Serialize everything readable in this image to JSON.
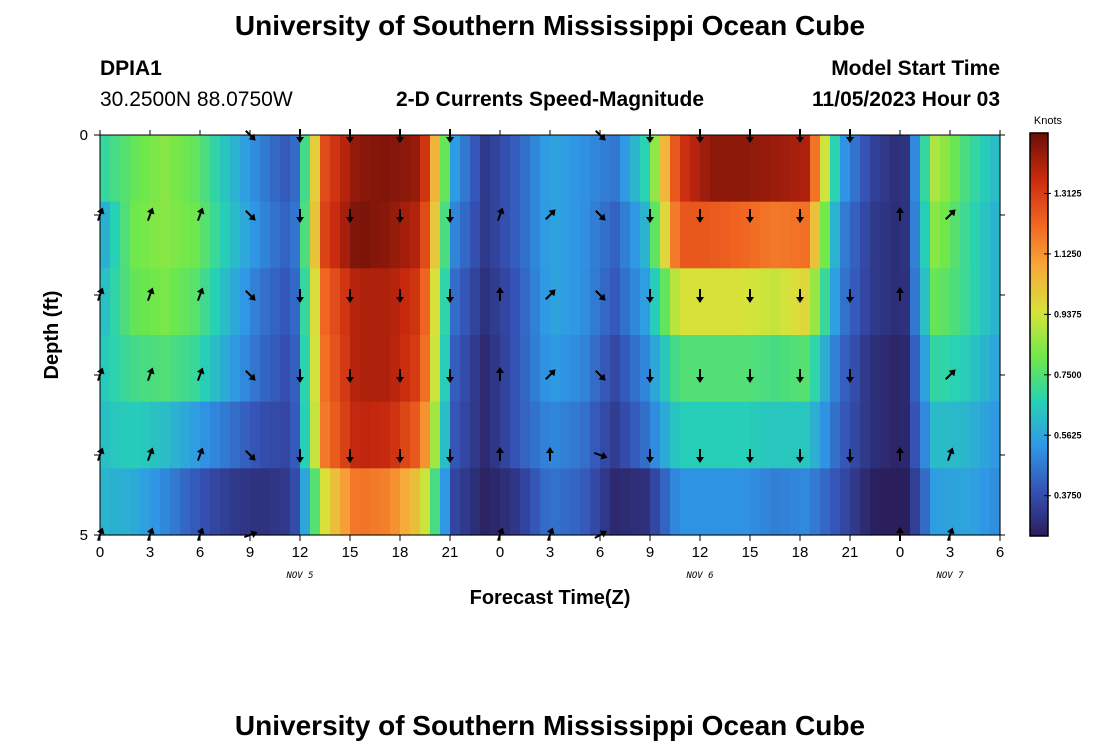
{
  "header": {
    "title": "University of Southern Mississippi Ocean Cube",
    "station_id": "DPIA1",
    "station_coords": "30.2500N  88.0750W",
    "subtitle": "2-D Currents Speed-Magnitude",
    "model_start_label": "Model Start Time",
    "model_start_value": "11/05/2023 Hour 03"
  },
  "footer": {
    "title": "University of Southern Mississippi Ocean Cube"
  },
  "chart_data": {
    "type": "heatmap",
    "title": "2-D Currents Speed-Magnitude",
    "xlabel": "Forecast Time(Z)",
    "ylabel": "Depth (ft)",
    "x_hours": [
      0,
      3,
      6,
      9,
      12,
      15,
      18,
      21,
      24,
      27,
      30,
      33,
      36,
      39,
      42,
      45,
      48,
      51,
      54
    ],
    "x_tick_labels": [
      "0",
      "3",
      "6",
      "9",
      "12",
      "15",
      "18",
      "21",
      "0",
      "3",
      "6",
      "9",
      "12",
      "15",
      "18",
      "21",
      "0",
      "3",
      "6"
    ],
    "date_labels": [
      {
        "label": "NOV 5",
        "hour": 12
      },
      {
        "label": "NOV 6",
        "hour": 36
      },
      {
        "label": "NOV 7",
        "hour": 51
      }
    ],
    "xlim": [
      0,
      54
    ],
    "y_depth_ft": [
      0,
      1,
      2,
      3,
      4,
      5
    ],
    "y_tick_labels": [
      {
        "label": "0",
        "depth": 0
      },
      {
        "label": "5",
        "depth": 5
      }
    ],
    "ylim": [
      0,
      5
    ],
    "speed_knots": [
      [
        0.68,
        0.78,
        0.84,
        0.78,
        0.62,
        0.48,
        0.38,
        1.28,
        1.45,
        1.47,
        1.43,
        0.55,
        0.32,
        0.42,
        0.56,
        0.52,
        0.46,
        0.68,
        1.32,
        1.45,
        1.45,
        1.43,
        1.4,
        0.56,
        0.35,
        0.28,
        0.9,
        0.72,
        0.6
      ],
      [
        0.55,
        0.8,
        0.84,
        0.8,
        0.64,
        0.5,
        0.4,
        1.3,
        1.48,
        1.45,
        1.38,
        0.5,
        0.32,
        0.42,
        0.56,
        0.52,
        0.42,
        0.6,
        1.25,
        1.25,
        1.22,
        1.18,
        1.2,
        0.5,
        0.33,
        0.28,
        0.85,
        0.7,
        0.58
      ],
      [
        0.6,
        0.78,
        0.82,
        0.76,
        0.6,
        0.46,
        0.38,
        1.22,
        1.4,
        1.4,
        1.32,
        0.45,
        0.3,
        0.4,
        0.56,
        0.52,
        0.4,
        0.55,
        0.95,
        0.95,
        0.95,
        0.92,
        0.98,
        0.48,
        0.33,
        0.28,
        0.8,
        0.7,
        0.58
      ],
      [
        0.64,
        0.72,
        0.75,
        0.7,
        0.56,
        0.44,
        0.36,
        1.2,
        1.4,
        1.4,
        1.3,
        0.42,
        0.28,
        0.4,
        0.54,
        0.5,
        0.36,
        0.5,
        0.75,
        0.75,
        0.75,
        0.73,
        0.76,
        0.44,
        0.3,
        0.26,
        0.7,
        0.65,
        0.55
      ],
      [
        0.62,
        0.66,
        0.62,
        0.54,
        0.46,
        0.38,
        0.35,
        1.18,
        1.38,
        1.36,
        1.22,
        0.4,
        0.28,
        0.4,
        0.5,
        0.46,
        0.33,
        0.45,
        0.66,
        0.66,
        0.66,
        0.64,
        0.64,
        0.42,
        0.3,
        0.26,
        0.62,
        0.6,
        0.52
      ],
      [
        0.6,
        0.58,
        0.5,
        0.4,
        0.33,
        0.3,
        0.33,
        0.95,
        1.2,
        1.16,
        1.0,
        0.36,
        0.26,
        0.32,
        0.46,
        0.42,
        0.28,
        0.3,
        0.52,
        0.52,
        0.52,
        0.48,
        0.5,
        0.38,
        0.26,
        0.22,
        0.55,
        0.56,
        0.5
      ]
    ],
    "arrow_rows_depth": [
      0,
      1,
      2,
      3,
      4,
      5
    ],
    "arrow_hours": [
      0,
      3,
      6,
      9,
      12,
      15,
      18,
      21,
      24,
      27,
      30,
      33,
      36,
      39,
      42,
      45,
      48,
      51
    ],
    "arrow_directions_deg": [
      [
        null,
        null,
        null,
        135,
        180,
        180,
        180,
        180,
        null,
        null,
        135,
        180,
        180,
        180,
        180,
        180,
        null,
        null
      ],
      [
        20,
        20,
        20,
        135,
        180,
        180,
        180,
        180,
        20,
        45,
        135,
        180,
        180,
        180,
        180,
        null,
        0,
        45
      ],
      [
        20,
        20,
        20,
        135,
        180,
        180,
        180,
        180,
        0,
        45,
        135,
        180,
        180,
        180,
        180,
        180,
        0,
        null
      ],
      [
        20,
        20,
        20,
        135,
        180,
        180,
        180,
        180,
        0,
        45,
        135,
        180,
        180,
        180,
        180,
        180,
        null,
        45
      ],
      [
        20,
        20,
        20,
        135,
        180,
        180,
        180,
        180,
        0,
        0,
        110,
        180,
        180,
        180,
        180,
        180,
        0,
        20
      ],
      [
        20,
        20,
        20,
        70,
        null,
        null,
        null,
        null,
        20,
        20,
        60,
        null,
        null,
        null,
        null,
        null,
        0,
        20
      ]
    ],
    "colorbar": {
      "unit": "Knots",
      "ticks": [
        "0.3750",
        "0.5625",
        "0.7500",
        "0.9375",
        "1.1250",
        "1.3125"
      ],
      "tick_values": [
        0.375,
        0.5625,
        0.75,
        0.9375,
        1.125,
        1.3125
      ],
      "vmin": 0.25,
      "vmax": 1.5
    },
    "colormap": [
      "#2a1e5c",
      "#3552b5",
      "#2f97e6",
      "#27d1b5",
      "#6fe84a",
      "#d6e33a",
      "#f8a93a",
      "#f06421",
      "#c8290e",
      "#6b0f08"
    ]
  }
}
